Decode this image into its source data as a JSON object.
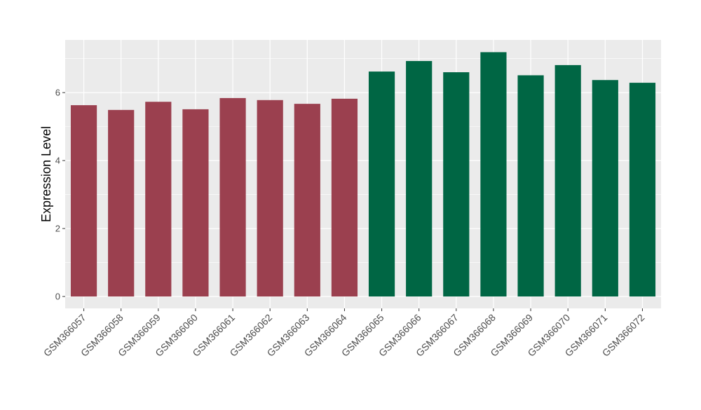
{
  "chart_data": {
    "type": "bar",
    "ylabel": "Expression Level",
    "xlabel": "",
    "ylim": [
      -0.35,
      7.55
    ],
    "yticks": [
      0,
      2,
      4,
      6
    ],
    "grid": true,
    "legend": "none",
    "categories": [
      "GSM366057",
      "GSM366058",
      "GSM366059",
      "GSM366060",
      "GSM366061",
      "GSM366062",
      "GSM366063",
      "GSM366064",
      "GSM366065",
      "GSM366066",
      "GSM366067",
      "GSM366068",
      "GSM366069",
      "GSM366070",
      "GSM366071",
      "GSM366072"
    ],
    "values": [
      5.63,
      5.49,
      5.73,
      5.51,
      5.84,
      5.78,
      5.67,
      5.82,
      6.62,
      6.93,
      6.6,
      7.19,
      6.51,
      6.81,
      6.37,
      6.29
    ],
    "bar_colors": [
      "#9b404f",
      "#9b404f",
      "#9b404f",
      "#9b404f",
      "#9b404f",
      "#9b404f",
      "#9b404f",
      "#9b404f",
      "#006644",
      "#006644",
      "#006644",
      "#006644",
      "#006644",
      "#006644",
      "#006644",
      "#006644"
    ],
    "panel_background": "#ebebeb",
    "grid_color": "#ffffff"
  }
}
